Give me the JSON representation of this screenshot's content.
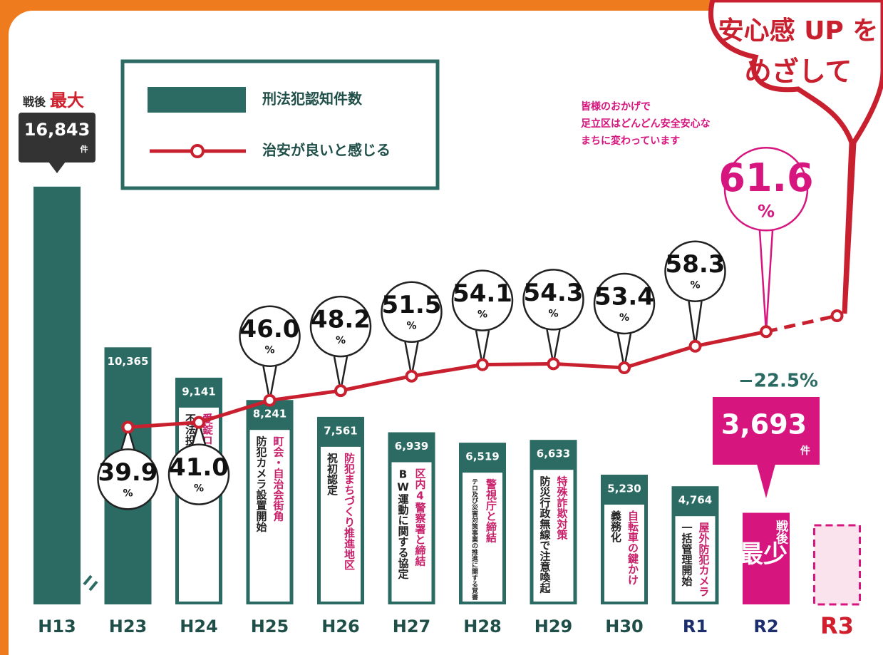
{
  "chart_data": {
    "type": "bar",
    "categories": [
      "H13",
      "H23",
      "H24",
      "H25",
      "H26",
      "H27",
      "H28",
      "H29",
      "H30",
      "R1",
      "R2",
      "R3"
    ],
    "category_label_colors": [
      "#1f4f48",
      "#1f4f48",
      "#1f4f48",
      "#1f4f48",
      "#1f4f48",
      "#1f4f48",
      "#1f4f48",
      "#1f4f48",
      "#1f4f48",
      "#1c2e6b",
      "#1c2e6b",
      "#d0202e"
    ],
    "ylim": [
      0,
      20000
    ],
    "y2lim": [
      0,
      100
    ],
    "series": [
      {
        "name": "刑法犯認知件数",
        "color": "#2b6b63",
        "colors": [
          "#2b6b63",
          "#2b6b63",
          "#2b6b63",
          "#2b6b63",
          "#2b6b63",
          "#2b6b63",
          "#2b6b63",
          "#2b6b63",
          "#2b6b63",
          "#2b6b63",
          "#d6157f",
          null
        ],
        "values": [
          16843,
          10365,
          9141,
          8241,
          7561,
          6939,
          6519,
          6633,
          5230,
          4764,
          3693,
          null
        ],
        "value_labels": [
          "16,843",
          "10,365",
          "9,141",
          "8,241",
          "7,561",
          "6,939",
          "6,519",
          "6,633",
          "5,230",
          "4,764",
          "3,693",
          null
        ],
        "unit_label": "件"
      },
      {
        "name": "治安が良いと感じる",
        "color": "#c8202f",
        "axis": "y2",
        "values": [
          null,
          39.9,
          41.0,
          46.0,
          48.2,
          51.5,
          54.1,
          54.3,
          53.4,
          58.3,
          61.6,
          null
        ],
        "value_labels": [
          null,
          "39.9",
          "41.0",
          "46.0",
          "48.2",
          "51.5",
          "54.1",
          "54.3",
          "53.4",
          "58.3",
          "61.6",
          null
        ],
        "unit_label": "%"
      }
    ],
    "bar_notes": [
      [],
      [],
      [
        "愛錠ロック大作戦",
        "不法投棄対策開始"
      ],
      [
        "町会・自治会街角",
        "防犯カメラ設置開始"
      ],
      [
        "防犯まちづくり推進地区",
        "祝初認定"
      ],
      [
        "区内4警察署と締結",
        "BW運動に関する協定"
      ],
      [
        "警視庁と締結",
        "テロ及び災害対策事業の推進に関する覚書"
      ],
      [
        "特殊詐欺対策",
        "防災行政無線で注意喚起"
      ],
      [
        "自転車の鍵かけ",
        "義務化"
      ],
      [
        "屋外防犯カメラ",
        "一括管理開始"
      ],
      [],
      []
    ],
    "max_label": {
      "prefix": "戦後",
      "main": "最大"
    },
    "min_label": {
      "prefix": "戦後",
      "main": "最少"
    },
    "change_label": "−22.5%",
    "note": [
      "皆様のおかげで",
      "足立区はどんどん安全安心な",
      "まちに変わっています"
    ],
    "slogan": [
      "安心感 UP を",
      "めざして"
    ]
  }
}
